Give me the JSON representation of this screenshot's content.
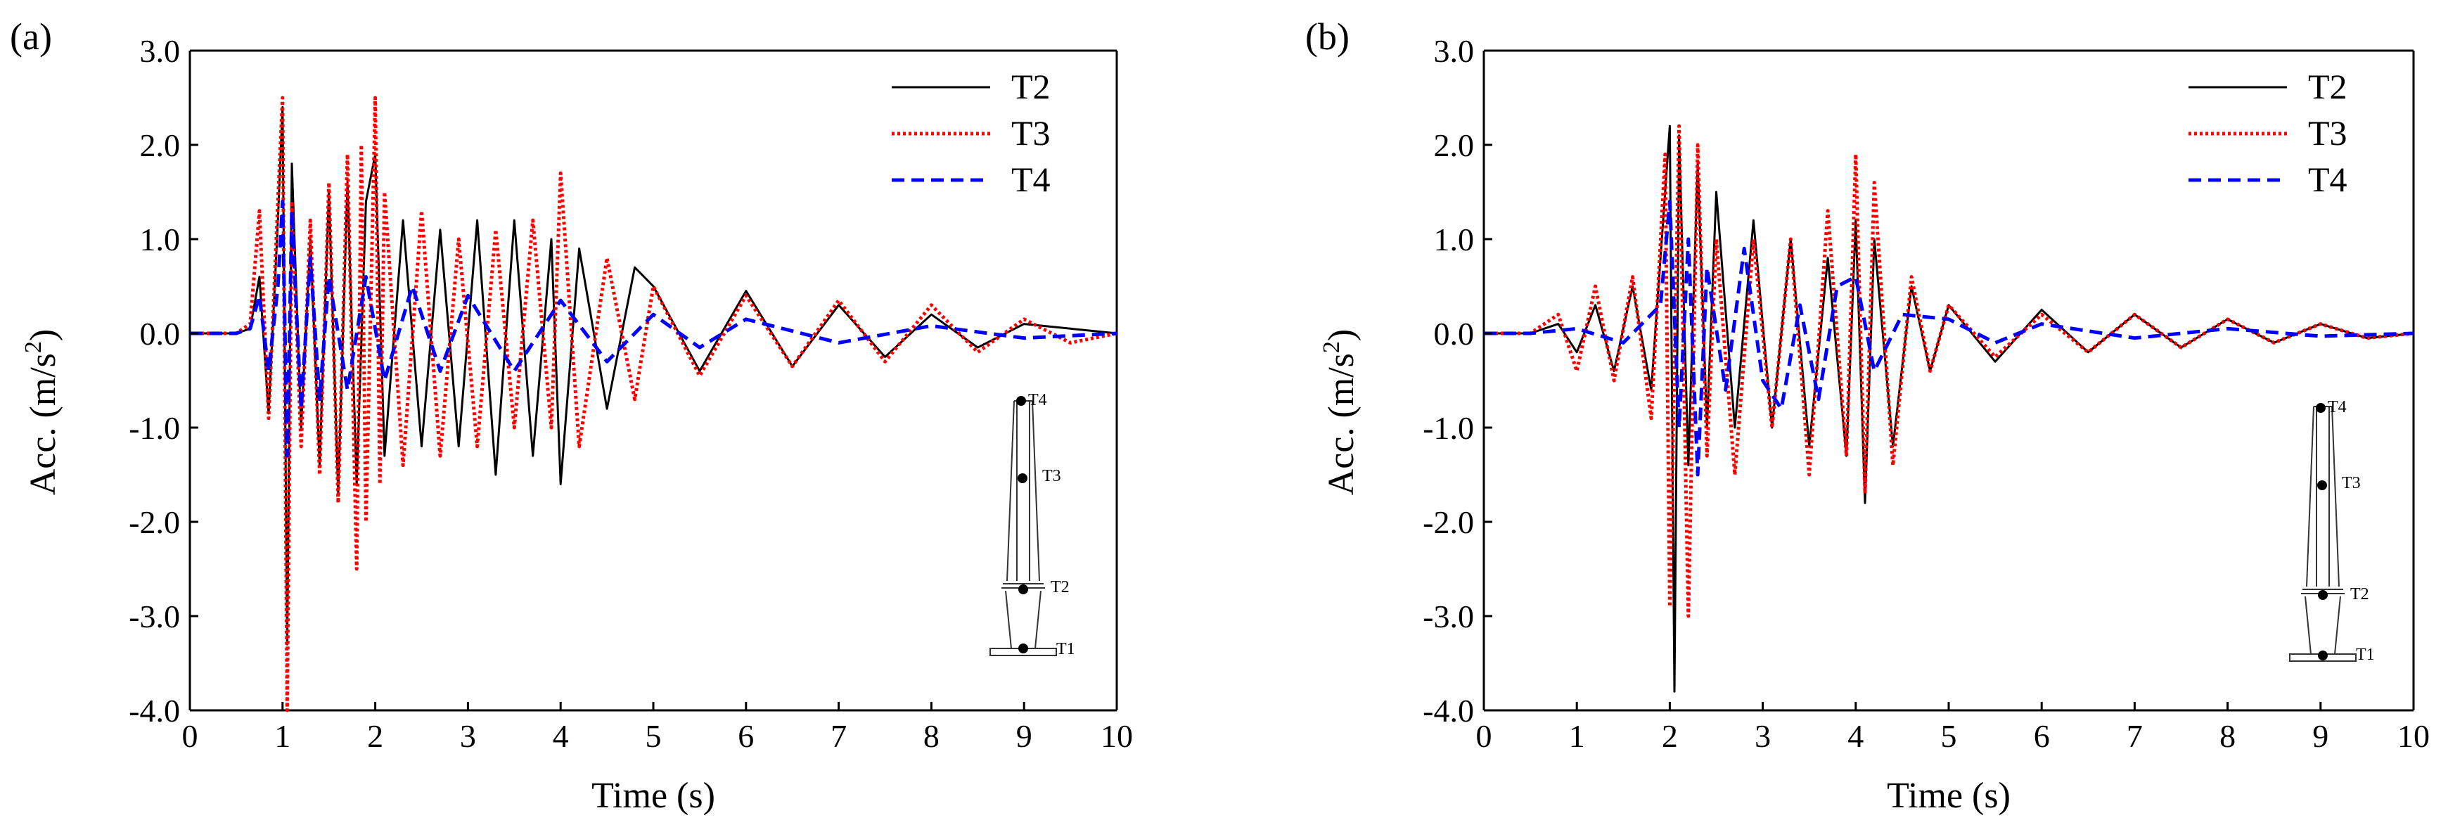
{
  "chart_data": [
    {
      "type": "line",
      "panel_label": "(a)",
      "xlabel": "Time (s)",
      "ylabel_main": "Acc. (m/s",
      "ylabel_sup": "2",
      "ylabel_tail": ")",
      "xlim": [
        0,
        10
      ],
      "ylim": [
        -4.0,
        3.0
      ],
      "xticks": [
        "0",
        "1",
        "2",
        "3",
        "4",
        "5",
        "6",
        "7",
        "8",
        "9",
        "10"
      ],
      "yticks": [
        "3.0",
        "2.0",
        "1.0",
        "0.0",
        "-1.0",
        "-2.0",
        "-3.0",
        "-4.0"
      ],
      "legend_position": "top-right",
      "series": [
        {
          "name": "T2",
          "color": "#000000",
          "style": "solid",
          "x": [
            0,
            0.5,
            0.65,
            0.75,
            0.85,
            0.95,
            1.0,
            1.05,
            1.1,
            1.2,
            1.3,
            1.4,
            1.5,
            1.6,
            1.7,
            1.8,
            1.9,
            2.0,
            2.1,
            2.3,
            2.5,
            2.7,
            2.9,
            3.1,
            3.3,
            3.5,
            3.7,
            3.9,
            4.0,
            4.2,
            4.5,
            4.8,
            5.0,
            5.5,
            6.0,
            6.5,
            7.0,
            7.5,
            8.0,
            8.5,
            9.0,
            9.5,
            10
          ],
          "y": [
            0,
            0,
            0.05,
            0.6,
            -0.85,
            1.2,
            2.4,
            -3.3,
            1.8,
            -1.0,
            1.0,
            -1.4,
            1.5,
            -1.7,
            1.6,
            -1.6,
            1.4,
            1.9,
            -1.3,
            1.2,
            -1.2,
            1.1,
            -1.2,
            1.2,
            -1.5,
            1.2,
            -1.3,
            1.0,
            -1.6,
            0.9,
            -0.8,
            0.7,
            0.5,
            -0.4,
            0.45,
            -0.35,
            0.3,
            -0.25,
            0.2,
            -0.15,
            0.1,
            0.05,
            0
          ]
        },
        {
          "name": "T3",
          "color": "#ff0000",
          "style": "dotted",
          "x": [
            0,
            0.5,
            0.65,
            0.75,
            0.85,
            0.95,
            1.0,
            1.05,
            1.1,
            1.2,
            1.3,
            1.4,
            1.5,
            1.6,
            1.7,
            1.8,
            1.85,
            1.9,
            2.0,
            2.05,
            2.1,
            2.3,
            2.5,
            2.7,
            2.9,
            3.1,
            3.3,
            3.5,
            3.7,
            3.9,
            4.0,
            4.2,
            4.5,
            4.8,
            5.0,
            5.5,
            6.0,
            6.5,
            7.0,
            7.5,
            8.0,
            8.5,
            9.0,
            9.5,
            10
          ],
          "y": [
            0,
            0,
            0.1,
            1.3,
            -0.9,
            1.4,
            2.5,
            -4.0,
            1.4,
            -1.2,
            1.2,
            -1.5,
            1.6,
            -1.8,
            1.9,
            -2.5,
            2.0,
            -2.0,
            2.5,
            -1.6,
            1.5,
            -1.4,
            1.3,
            -1.3,
            1.0,
            -1.2,
            1.1,
            -1.0,
            1.2,
            -1.0,
            1.7,
            -1.2,
            0.8,
            -0.7,
            0.5,
            -0.45,
            0.4,
            -0.35,
            0.35,
            -0.3,
            0.3,
            -0.2,
            0.15,
            -0.1,
            0
          ]
        },
        {
          "name": "T4",
          "color": "#0000ff",
          "style": "dashed",
          "x": [
            0,
            0.5,
            0.65,
            0.75,
            0.85,
            0.95,
            1.0,
            1.05,
            1.1,
            1.2,
            1.3,
            1.4,
            1.5,
            1.7,
            1.9,
            2.1,
            2.4,
            2.7,
            3.0,
            3.5,
            4.0,
            4.5,
            5.0,
            5.5,
            6.0,
            7.0,
            8.0,
            9.0,
            10
          ],
          "y": [
            0,
            0,
            0.05,
            0.4,
            -0.4,
            0.5,
            1.4,
            -1.3,
            1.3,
            -0.8,
            0.8,
            -0.7,
            0.6,
            -0.6,
            0.6,
            -0.5,
            0.5,
            -0.4,
            0.4,
            -0.4,
            0.35,
            -0.3,
            0.2,
            -0.15,
            0.15,
            -0.1,
            0.08,
            -0.05,
            0
          ]
        }
      ],
      "inset": {
        "labels": [
          "T4",
          "T3",
          "T2",
          "T1"
        ]
      }
    },
    {
      "type": "line",
      "panel_label": "(b)",
      "xlabel": "Time (s)",
      "ylabel_main": "Acc. (m/s",
      "ylabel_sup": "2",
      "ylabel_tail": ")",
      "xlim": [
        0,
        10
      ],
      "ylim": [
        -4.0,
        3.0
      ],
      "xticks": [
        "0",
        "1",
        "2",
        "3",
        "4",
        "5",
        "6",
        "7",
        "8",
        "9",
        "10"
      ],
      "yticks": [
        "3.0",
        "2.0",
        "1.0",
        "0.0",
        "-1.0",
        "-2.0",
        "-3.0",
        "-4.0"
      ],
      "legend_position": "top-right",
      "series": [
        {
          "name": "T2",
          "color": "#000000",
          "style": "solid",
          "x": [
            0,
            0.5,
            0.8,
            1.0,
            1.2,
            1.4,
            1.6,
            1.8,
            1.95,
            2.0,
            2.05,
            2.1,
            2.2,
            2.3,
            2.4,
            2.5,
            2.7,
            2.9,
            3.1,
            3.3,
            3.5,
            3.7,
            3.9,
            4.0,
            4.1,
            4.2,
            4.4,
            4.6,
            4.8,
            5.0,
            5.5,
            6.0,
            6.5,
            7.0,
            7.5,
            8.0,
            8.5,
            9.0,
            9.5,
            10
          ],
          "y": [
            0,
            0,
            0.1,
            -0.2,
            0.3,
            -0.4,
            0.5,
            -0.6,
            1.5,
            2.2,
            -3.8,
            2.1,
            -1.4,
            1.8,
            -1.0,
            1.5,
            -1.0,
            1.2,
            -1.0,
            1.0,
            -1.2,
            0.8,
            -1.3,
            1.2,
            -1.8,
            1.0,
            -1.2,
            0.5,
            -0.4,
            0.3,
            -0.3,
            0.25,
            -0.2,
            0.2,
            -0.15,
            0.15,
            -0.1,
            0.1,
            -0.05,
            0
          ]
        },
        {
          "name": "T3",
          "color": "#ff0000",
          "style": "dotted",
          "x": [
            0,
            0.5,
            0.8,
            1.0,
            1.2,
            1.4,
            1.6,
            1.8,
            1.95,
            2.0,
            2.1,
            2.2,
            2.3,
            2.4,
            2.5,
            2.7,
            2.9,
            3.1,
            3.3,
            3.5,
            3.7,
            3.9,
            4.0,
            4.1,
            4.2,
            4.4,
            4.6,
            4.8,
            5.0,
            5.5,
            6.0,
            6.5,
            7.0,
            7.5,
            8.0,
            8.5,
            9.0,
            9.5,
            10
          ],
          "y": [
            0,
            0,
            0.2,
            -0.4,
            0.5,
            -0.5,
            0.6,
            -0.9,
            1.9,
            -2.9,
            2.2,
            -3.0,
            2.0,
            -1.3,
            1.0,
            -1.5,
            1.0,
            -1.0,
            1.0,
            -1.5,
            1.3,
            -1.3,
            1.9,
            -1.7,
            1.6,
            -1.4,
            0.6,
            -0.4,
            0.3,
            -0.25,
            0.2,
            -0.2,
            0.2,
            -0.15,
            0.15,
            -0.1,
            0.1,
            -0.05,
            0
          ]
        },
        {
          "name": "T4",
          "color": "#0000ff",
          "style": "dashed",
          "x": [
            0,
            0.5,
            1.0,
            1.5,
            1.9,
            2.0,
            2.1,
            2.2,
            2.3,
            2.4,
            2.6,
            2.8,
            3.0,
            3.2,
            3.4,
            3.6,
            3.8,
            4.0,
            4.2,
            4.5,
            5.0,
            5.5,
            6.0,
            7.0,
            8.0,
            9.0,
            10
          ],
          "y": [
            0,
            0,
            0.05,
            -0.1,
            0.3,
            1.4,
            -1.0,
            1.0,
            -1.5,
            0.7,
            -0.6,
            0.9,
            -0.5,
            -0.8,
            0.3,
            -0.7,
            0.5,
            0.6,
            -0.4,
            0.2,
            0.15,
            -0.1,
            0.1,
            -0.05,
            0.05,
            -0.03,
            0
          ]
        }
      ],
      "inset": {
        "labels": [
          "T4",
          "T3",
          "T2",
          "T1"
        ]
      }
    }
  ]
}
